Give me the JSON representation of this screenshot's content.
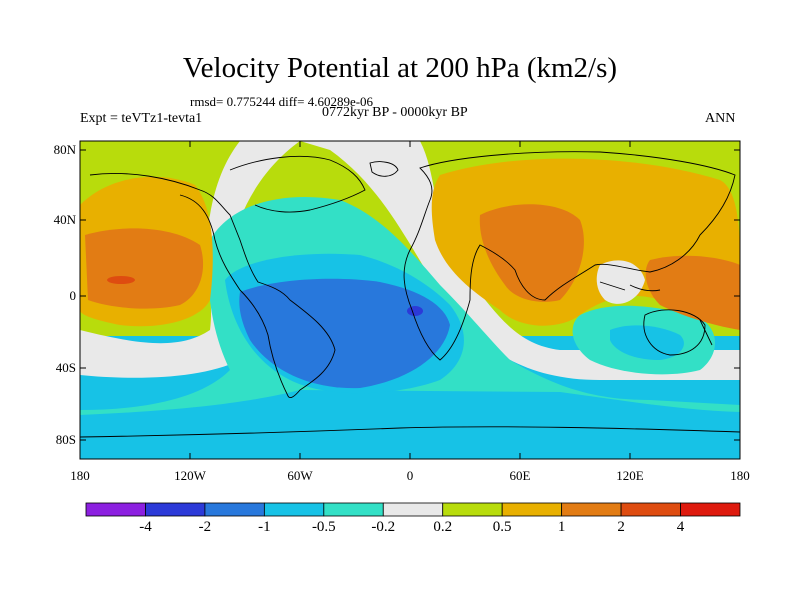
{
  "header": {
    "title": "Velocity Potential at 200 hPa (km2/s)",
    "stats": "rmsd= 0.775244 diff= 4.60289e-06",
    "experiment": "Expt = teVTz1-tevta1",
    "period": "0772kyr BP - 0000kyr BP",
    "season": "ANN"
  },
  "axes": {
    "lat_labels": [
      "80N",
      "40N",
      "0",
      "40S",
      "80S"
    ],
    "lon_labels": [
      "180",
      "120W",
      "60W",
      "0",
      "60E",
      "120E",
      "180"
    ]
  },
  "colorbar": {
    "labels": [
      "-4",
      "-2",
      "-1",
      "-0.5",
      "-0.2",
      "0.2",
      "0.5",
      "1",
      "2",
      "4"
    ],
    "colors": [
      "#8c20e0",
      "#2c3ad8",
      "#2878dc",
      "#17c2e6",
      "#33e0c6",
      "#e9e9e9",
      "#b8dc0c",
      "#e8b000",
      "#e27c14",
      "#de4c10",
      "#de1a0e"
    ]
  },
  "map_colors": {
    "ocean_band": "#b8dc0c",
    "neutral": "#e9e9e9",
    "neg_weak": "#33e0c6",
    "neg_mid": "#17c2e6",
    "neg_strong": "#2878dc",
    "neg_core": "#2c3ad8",
    "pos_weak": "#e8b000",
    "pos_mid": "#e27c14",
    "pos_strong": "#de4c10",
    "pos_core": "#de1a0e"
  }
}
